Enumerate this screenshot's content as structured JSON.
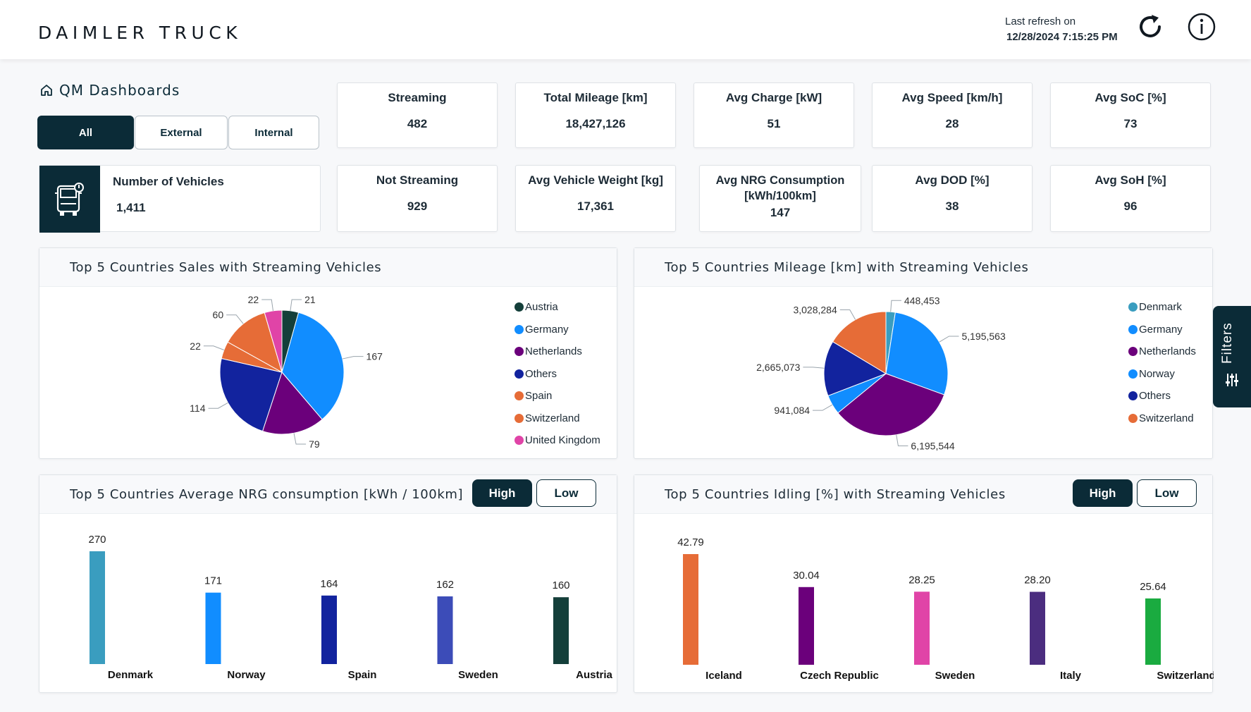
{
  "header": {
    "brand": "DAIMLER TRUCK",
    "refresh_label": "Last refresh on",
    "refresh_time": "12/28/2024 7:15:25 PM"
  },
  "nav": {
    "title": "QM Dashboards",
    "segments": [
      "All",
      "External",
      "Internal"
    ],
    "active_segment": "All"
  },
  "vehicles": {
    "label": "Number of Vehicles",
    "value": "1,411"
  },
  "kpis": [
    {
      "label": "Streaming",
      "value": "482"
    },
    {
      "label": "Total Mileage [km]",
      "value": "18,427,126"
    },
    {
      "label": "Avg Charge [kW]",
      "value": "51"
    },
    {
      "label": "Avg Speed [km/h]",
      "value": "28"
    },
    {
      "label": "Avg SoC [%]",
      "value": "73"
    },
    {
      "label": "Not Streaming",
      "value": "929"
    },
    {
      "label": "Avg Vehicle Weight [kg]",
      "value": "17,361"
    },
    {
      "label": "Avg NRG Consumption [kWh/100km]",
      "value": "147"
    },
    {
      "label": "Avg DOD [%]",
      "value": "38"
    },
    {
      "label": "Avg SoH [%]",
      "value": "96"
    }
  ],
  "filters_label": "Filters",
  "panels": {
    "sales": {
      "title": "Top 5 Countries Sales with Streaming Vehicles"
    },
    "mileage": {
      "title": "Top 5 Countries Mileage [km] with Streaming Vehicles"
    },
    "nrg": {
      "title": "Top 5 Countries Average NRG consumption [kWh / 100km]",
      "high": "High",
      "low": "Low"
    },
    "idling": {
      "title": "Top 5 Countries Idling [%] with Streaming Vehicles",
      "high": "High",
      "low": "Low"
    }
  },
  "colors": {
    "dark": "#0b2b37",
    "Austria": "#143f3a",
    "Germany": "#118dff",
    "Netherlands": "#6b007b",
    "Others": "#12239e",
    "Spain": "#e66c37",
    "Switzerland": "#e66c37",
    "United Kingdom": "#e044a7",
    "Denmark": "#3a9dbf",
    "Norway": "#118dff"
  },
  "chart_data": [
    {
      "type": "pie",
      "title": "Top 5 Countries Sales with Streaming Vehicles",
      "legend": [
        "Austria",
        "Germany",
        "Netherlands",
        "Others",
        "Spain",
        "Switzerland",
        "United Kingdom"
      ],
      "legend_colors": [
        "#143f3a",
        "#118dff",
        "#6b007b",
        "#12239e",
        "#e66c37",
        "#e66c37",
        "#e044a7"
      ],
      "slices": [
        {
          "name": "Austria",
          "value": 21,
          "color": "#143f3a"
        },
        {
          "name": "Germany",
          "value": 167,
          "color": "#118dff"
        },
        {
          "name": "Netherlands",
          "value": 79,
          "color": "#6b007b"
        },
        {
          "name": "Others",
          "value": 114,
          "color": "#12239e"
        },
        {
          "name": "Spain",
          "value": 22,
          "color": "#e66c37"
        },
        {
          "name": "Switzerland",
          "value": 60,
          "color": "#e66c37"
        },
        {
          "name": "United Kingdom",
          "value": 22,
          "color": "#e044a7"
        }
      ],
      "labels": [
        "21",
        "167",
        "79",
        "114",
        "22",
        "60",
        "22"
      ],
      "legend_position": "right"
    },
    {
      "type": "pie",
      "title": "Top 5 Countries Mileage [km] with Streaming Vehicles",
      "legend": [
        "Denmark",
        "Germany",
        "Netherlands",
        "Norway",
        "Others",
        "Switzerland"
      ],
      "legend_colors": [
        "#3a9dbf",
        "#118dff",
        "#6b007b",
        "#118dff",
        "#12239e",
        "#e66c37"
      ],
      "slices": [
        {
          "name": "Denmark",
          "value": 448453,
          "color": "#3a9dbf"
        },
        {
          "name": "Germany",
          "value": 5195563,
          "color": "#118dff"
        },
        {
          "name": "Netherlands",
          "value": 6195544,
          "color": "#6b007b"
        },
        {
          "name": "Norway",
          "value": 941084,
          "color": "#118dff"
        },
        {
          "name": "Others",
          "value": 2665073,
          "color": "#12239e"
        },
        {
          "name": "Switzerland",
          "value": 3028284,
          "color": "#e66c37"
        }
      ],
      "labels": [
        "448,453",
        "5,195,563",
        "6,195,544",
        "941,084",
        "2,665,073",
        "3,028,284"
      ],
      "legend_position": "right"
    },
    {
      "type": "bar",
      "title": "Top 5 Countries Average NRG consumption [kWh / 100km]",
      "categories": [
        "Denmark",
        "Norway",
        "Spain",
        "Sweden",
        "Austria"
      ],
      "values": [
        270,
        171,
        164,
        162,
        160
      ],
      "labels": [
        "270",
        "171",
        "164",
        "162",
        "160"
      ],
      "colors": [
        "#3a9dbf",
        "#118dff",
        "#12239e",
        "#3c4cb8",
        "#143f3a"
      ],
      "ylim": [
        0,
        270
      ]
    },
    {
      "type": "bar",
      "title": "Top 5 Countries Idling [%] with Streaming Vehicles",
      "categories": [
        "Iceland",
        "Czech Republic",
        "Sweden",
        "Italy",
        "Switzerland"
      ],
      "values": [
        42.79,
        30.04,
        28.25,
        28.2,
        25.64
      ],
      "labels": [
        "42.79",
        "30.04",
        "28.25",
        "28.20",
        "25.64"
      ],
      "colors": [
        "#e66c37",
        "#6b007b",
        "#e044a7",
        "#4b2d7f",
        "#1aab40"
      ],
      "ylim": [
        0,
        42.79
      ]
    }
  ]
}
